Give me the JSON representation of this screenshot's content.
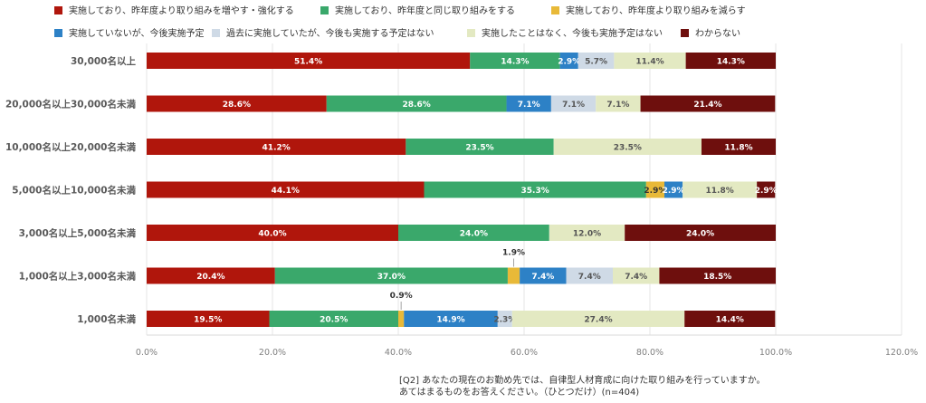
{
  "chart_data": {
    "type": "bar",
    "orientation": "horizontal",
    "stacked": true,
    "categories": [
      "30,000名以上",
      "20,000名以上30,000名未満",
      "10,000名以上20,000名未満",
      "5,000名以上10,000名未満",
      "3,000名以上5,000名未満",
      "1,000名以上3,000名未満",
      "1,000名未満"
    ],
    "series": [
      {
        "name": "実施しており、昨年度より取り組みを増やす・強化する",
        "color": "#b0160c",
        "label_color": "#ffffff",
        "values": [
          51.4,
          28.6,
          41.2,
          44.1,
          40.0,
          20.4,
          19.5
        ]
      },
      {
        "name": "実施しており、昨年度と同じ取り組みをする",
        "color": "#3aa86b",
        "label_color": "#ffffff",
        "values": [
          14.3,
          28.6,
          23.5,
          35.3,
          24.0,
          37.0,
          20.5
        ]
      },
      {
        "name": "実施しており、昨年度より取り組みを減らす",
        "color": "#e8b938",
        "label_color": "#333333",
        "values": [
          0,
          0,
          0,
          2.9,
          0,
          1.9,
          0.9
        ]
      },
      {
        "name": "実施していないが、今後実施予定",
        "color": "#2d81c6",
        "label_color": "#ffffff",
        "values": [
          2.9,
          7.1,
          0,
          2.9,
          0,
          7.4,
          14.9
        ]
      },
      {
        "name": "過去に実施していたが、今後も実施する予定はない",
        "color": "#cfdae6",
        "label_color": "#555555",
        "values": [
          5.7,
          7.1,
          0,
          0,
          0,
          7.4,
          2.3
        ]
      },
      {
        "name": "実施したことはなく、今後も実施予定はない",
        "color": "#e3e9c2",
        "label_color": "#555555",
        "values": [
          11.4,
          7.1,
          23.5,
          11.8,
          12.0,
          7.4,
          27.4
        ]
      },
      {
        "name": "わからない",
        "color": "#6e0f0d",
        "label_color": "#ffffff",
        "values": [
          14.3,
          21.4,
          11.8,
          2.9,
          24.0,
          18.5,
          14.4
        ]
      }
    ],
    "value_format": "%",
    "xlim": [
      0,
      120
    ],
    "xticks": [
      "0.0%",
      "20.0%",
      "40.0%",
      "60.0%",
      "80.0%",
      "100.0%",
      "120.0%"
    ],
    "grid": true,
    "legend_position": "top",
    "note_lines": [
      "[Q2] あなたの現在のお勤め先では、自律型人材育成に向けた取り組みを行っていますか。",
      "あてはまるものをお答えください。（ひとつだけ）(n=404)"
    ]
  }
}
